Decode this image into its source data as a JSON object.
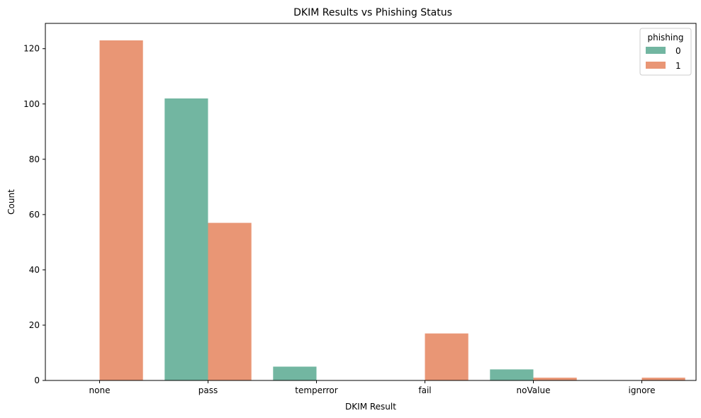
{
  "chart_data": {
    "type": "bar",
    "title": "DKIM Results vs Phishing Status",
    "xlabel": "DKIM Result",
    "ylabel": "Count",
    "categories": [
      "none",
      "pass",
      "temperror",
      "fail",
      "noValue",
      "ignore"
    ],
    "series": [
      {
        "name": "0",
        "color": "#72b6a1",
        "values": [
          0,
          102,
          5,
          0,
          4,
          0
        ]
      },
      {
        "name": "1",
        "color": "#e99675",
        "values": [
          123,
          57,
          0,
          17,
          1,
          1
        ]
      }
    ],
    "ylim": [
      0,
      129.15
    ],
    "yticks": [
      0,
      20,
      40,
      60,
      80,
      100,
      120
    ],
    "grid": false,
    "legend": {
      "title": "phishing",
      "position": "top-right"
    }
  }
}
